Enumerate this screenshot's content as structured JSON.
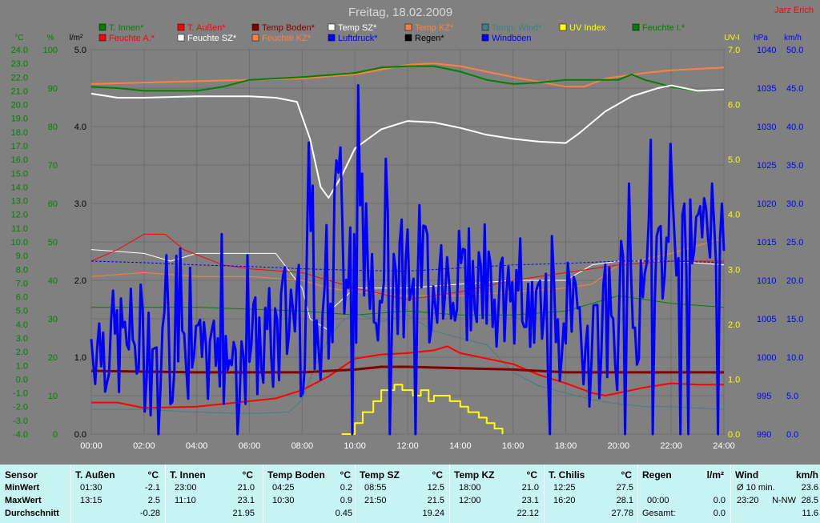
{
  "header": {
    "title": "Freitag, 18.02.2009",
    "author": "Jarz Erich"
  },
  "legend": [
    {
      "label": "T. Innen*",
      "color": "#008000"
    },
    {
      "label": "T. Außen*",
      "color": "#ff0000"
    },
    {
      "label": "Temp Boden*",
      "color": "#800000"
    },
    {
      "label": "Temp SZ*",
      "color": "#ffffff"
    },
    {
      "label": "Temp KZ*",
      "color": "#ff8040"
    },
    {
      "label": "Temp. Wind*",
      "color": "#408080"
    },
    {
      "label": "UV Index",
      "color": "#ffff00"
    },
    {
      "label": "Feuchte I.*",
      "color": "#008000"
    },
    {
      "label": "Feuchte A.*",
      "color": "#ff0000"
    },
    {
      "label": "Feuchte SZ*",
      "color": "#ffffff"
    },
    {
      "label": "Feuchte KZ*",
      "color": "#ff8040"
    },
    {
      "label": "Luftdruck*",
      "color": "#0000ff"
    },
    {
      "label": "Regen*",
      "color": "#000000"
    },
    {
      "label": "Windböen",
      "color": "#0000ff"
    }
  ],
  "chart_data": {
    "type": "line",
    "xlabel": "",
    "x_ticks": [
      "00:00",
      "02:00",
      "04:00",
      "06:00",
      "08:00",
      "10:00",
      "12:00",
      "14:00",
      "16:00",
      "18:00",
      "20:00",
      "22:00",
      "24:00"
    ],
    "xlim": [
      0,
      24
    ],
    "axes": {
      "temp": {
        "unit": "°C",
        "ylim": [
          -4,
          24
        ],
        "color": "#008000",
        "ticks": [
          "24.0",
          "23.0",
          "22.0",
          "21.0",
          "20.0",
          "19.0",
          "18.0",
          "17.0",
          "16.0",
          "15.0",
          "14.0",
          "13.0",
          "12.0",
          "11.0",
          "10.0",
          "9.0",
          "8.0",
          "7.0",
          "6.0",
          "5.0",
          "4.0",
          "3.0",
          "2.0",
          "1.0",
          "0.0",
          "-1.0",
          "-2.0",
          "-3.0",
          "-4.0"
        ]
      },
      "humidity": {
        "unit": "%",
        "ylim": [
          0,
          100
        ],
        "color": "#008000",
        "ticks": [
          "100",
          "90",
          "80",
          "70",
          "60",
          "50",
          "40",
          "30",
          "20",
          "10",
          "0"
        ]
      },
      "rain": {
        "unit": "l/m²",
        "ylim": [
          0,
          5
        ],
        "color": "#000000",
        "ticks": [
          "5.0",
          "4.0",
          "3.0",
          "2.0",
          "1.0",
          "0.0"
        ]
      },
      "uv": {
        "unit": "UV-I",
        "ylim": [
          0,
          7
        ],
        "color": "#ffff00",
        "ticks": [
          "7.0",
          "6.0",
          "5.0",
          "4.0",
          "3.0",
          "2.0",
          "1.0",
          "0.0"
        ]
      },
      "pressure": {
        "unit": "hPa",
        "ylim": [
          990,
          1040
        ],
        "color": "#0000ff",
        "ticks": [
          "1040",
          "1035",
          "1030",
          "1025",
          "1020",
          "1015",
          "1010",
          "1005",
          "1000",
          "995",
          "990"
        ]
      },
      "wind": {
        "unit": "km/h",
        "ylim": [
          0,
          50
        ],
        "color": "#0000ff",
        "ticks": [
          "50.0",
          "45.0",
          "40.0",
          "35.0",
          "30.0",
          "25.0",
          "20.0",
          "15.0",
          "10.0",
          "5.0",
          "0.0"
        ]
      }
    },
    "series": [
      {
        "name": "Temp KZ*",
        "axis": "temp",
        "color": "#ff8040",
        "width": 2,
        "x": [
          0,
          2,
          4,
          6,
          8,
          10,
          12,
          13,
          14,
          16,
          18,
          18.7,
          19.5,
          21,
          22,
          24
        ],
        "y": [
          21.5,
          21.6,
          21.7,
          21.8,
          21.9,
          22.2,
          22.9,
          23.0,
          22.8,
          22.0,
          21.3,
          21.3,
          21.9,
          22.3,
          22.5,
          22.7
        ]
      },
      {
        "name": "T. Innen*",
        "axis": "temp",
        "color": "#008000",
        "width": 2,
        "x": [
          0,
          1,
          2,
          4,
          5,
          6,
          8,
          10,
          11,
          12,
          13,
          14,
          15,
          16,
          17,
          18,
          19,
          20,
          20.5,
          21,
          22,
          23,
          24
        ],
        "y": [
          21.3,
          21.2,
          21.0,
          21.0,
          21.3,
          21.8,
          22.0,
          22.3,
          22.7,
          22.8,
          22.8,
          22.4,
          21.8,
          21.5,
          21.6,
          21.8,
          21.8,
          21.8,
          22.2,
          21.8,
          21.3,
          21.0,
          21.1
        ]
      },
      {
        "name": "Temp SZ*",
        "axis": "temp",
        "color": "#ffffff",
        "width": 2,
        "x": [
          0,
          1,
          2,
          4,
          6,
          7,
          7.8,
          8.3,
          8.7,
          9,
          9.5,
          10,
          11,
          12,
          13,
          14,
          15,
          16,
          17,
          18,
          18.5,
          19.5,
          20.5,
          21.5,
          22,
          23,
          24
        ],
        "y": [
          20.8,
          20.5,
          20.5,
          20.6,
          20.6,
          20.5,
          20.2,
          17.5,
          14.0,
          13.2,
          14.8,
          16.8,
          18.2,
          18.8,
          18.7,
          18.3,
          17.8,
          17.5,
          17.3,
          17.2,
          17.9,
          19.5,
          20.6,
          21.2,
          21.4,
          21.0,
          21.1
        ]
      },
      {
        "name": "Feuchte SZ*",
        "axis": "humidity",
        "color": "#ffffff",
        "width": 1,
        "x": [
          0,
          2,
          3,
          4,
          6,
          7,
          8,
          8.3,
          9,
          9.2,
          10,
          12,
          14,
          16,
          18,
          18.5,
          19,
          20,
          22,
          24
        ],
        "y": [
          48,
          47,
          45,
          47,
          47,
          47,
          38,
          30,
          27,
          33,
          38,
          38,
          39,
          40,
          40,
          42,
          44,
          45,
          45,
          44
        ]
      },
      {
        "name": "Feuchte KZ*",
        "axis": "humidity",
        "color": "#ff8040",
        "width": 1,
        "x": [
          0,
          2,
          4,
          6,
          8,
          9,
          10,
          12,
          14,
          16,
          18,
          19,
          20,
          22,
          24
        ],
        "y": [
          41,
          42,
          41,
          41,
          40,
          38,
          37,
          36,
          36,
          37,
          38,
          39,
          44,
          47,
          51
        ]
      },
      {
        "name": "Feuchte A.*",
        "axis": "humidity",
        "color": "#ff0000",
        "width": 1,
        "x": [
          0,
          1,
          2,
          2.8,
          3.5,
          5,
          6,
          8,
          10,
          12,
          14,
          16,
          18,
          19,
          20,
          22,
          23,
          24
        ],
        "y": [
          45,
          48,
          52,
          52,
          48,
          44,
          43,
          42,
          38,
          35,
          37,
          40,
          42,
          43,
          44,
          45,
          45,
          45
        ]
      },
      {
        "name": "Feuchte I.*",
        "axis": "humidity",
        "color": "#008000",
        "width": 1,
        "x": [
          0,
          4,
          8,
          10,
          12,
          14,
          16,
          18,
          20,
          21,
          22,
          24
        ],
        "y": [
          33,
          33,
          32,
          31,
          32,
          31,
          31,
          32,
          36,
          35,
          34,
          33
        ]
      },
      {
        "name": "Luftdruck*",
        "axis": "pressure",
        "color": "#0000ff",
        "width": 1,
        "dash": "3,2",
        "x": [
          0,
          2,
          4,
          6,
          8,
          10,
          12,
          14,
          16,
          18,
          20,
          22,
          24
        ],
        "y": [
          1012.5,
          1012.3,
          1012.0,
          1011.8,
          1011.5,
          1011.3,
          1011.2,
          1011.6,
          1012.0,
          1012.2,
          1012.5,
          1012.5,
          1012.3
        ]
      },
      {
        "name": "Temp. Wind*",
        "axis": "temp",
        "color": "#408080",
        "width": 1,
        "x": [
          0,
          2,
          4,
          6,
          7.5,
          8,
          8.5,
          9,
          9.5,
          10,
          11,
          12,
          13,
          14,
          15,
          16,
          17,
          18,
          19,
          20,
          21,
          22,
          24
        ],
        "y": [
          -2.2,
          -2.2,
          -2.4,
          -2.5,
          -2.4,
          -1.5,
          1.0,
          3.0,
          4.2,
          4.8,
          4.2,
          4.7,
          3.5,
          3.0,
          2.5,
          0.5,
          -0.5,
          -1.0,
          -1.5,
          -1.8,
          -2.0,
          -2.0,
          -2.2
        ]
      },
      {
        "name": "T. Außen*",
        "axis": "temp",
        "color": "#ff0000",
        "width": 2,
        "x": [
          0,
          1,
          2,
          4,
          6,
          7,
          8,
          9,
          10,
          11,
          12,
          13,
          13.5,
          14,
          15,
          16,
          17,
          18,
          19,
          19.5,
          20,
          21,
          22,
          23,
          24
        ],
        "y": [
          -1.7,
          -1.7,
          -2.1,
          -2.0,
          -1.6,
          -1.4,
          -0.8,
          0.2,
          1.5,
          1.8,
          1.9,
          2.1,
          2.4,
          1.9,
          1.5,
          1.1,
          0.3,
          -0.3,
          -1.0,
          -1.2,
          -1.0,
          -0.6,
          -0.3,
          -0.4,
          -0.4
        ]
      },
      {
        "name": "Temp Boden*",
        "axis": "temp",
        "color": "#800000",
        "width": 3,
        "x": [
          0,
          4,
          8,
          10,
          11,
          12,
          14,
          16,
          18,
          20,
          22,
          24
        ],
        "y": [
          0.6,
          0.5,
          0.5,
          0.7,
          0.9,
          0.9,
          0.8,
          0.7,
          0.5,
          0.5,
          0.5,
          0.5
        ]
      },
      {
        "name": "UV Index",
        "axis": "uv",
        "color": "#ffff00",
        "width": 2,
        "step": true,
        "x": [
          9.5,
          10,
          10.3,
          10.7,
          11,
          11.3,
          11.5,
          11.8,
          12.2,
          12.5,
          12.8,
          13,
          13.3,
          13.6,
          14,
          14.3,
          14.7,
          15,
          15.3,
          15.6
        ],
        "y": [
          0,
          0.2,
          0.4,
          0.6,
          0.8,
          0.8,
          0.9,
          0.8,
          0.7,
          0.8,
          0.6,
          0.7,
          0.7,
          0.6,
          0.5,
          0.4,
          0.3,
          0.2,
          0.1,
          0
        ]
      },
      {
        "name": "Windböen",
        "axis": "wind",
        "color": "#0000ff",
        "width": 3,
        "jagged": true,
        "seed": 7,
        "profile_x": [
          0,
          2,
          4,
          6,
          7,
          8,
          9,
          9.5,
          10,
          10.5,
          11,
          12,
          13,
          14,
          15,
          16,
          17,
          18,
          19,
          20,
          21,
          22,
          23,
          24
        ],
        "profile_lo": [
          5,
          2,
          3,
          3,
          3,
          5,
          7,
          10,
          10,
          12,
          12,
          12,
          10,
          12,
          12,
          10,
          8,
          5,
          3,
          5,
          10,
          18,
          20,
          22
        ],
        "profile_hi": [
          18,
          20,
          15,
          18,
          20,
          30,
          28,
          45,
          40,
          30,
          28,
          30,
          30,
          28,
          25,
          22,
          22,
          20,
          22,
          26,
          28,
          32,
          32,
          30
        ]
      }
    ]
  },
  "stats": {
    "row_labels": {
      "sensor": "Sensor",
      "min": "MinWert",
      "max": "MaxWert",
      "avg": "Durchschnitt"
    },
    "columns": [
      {
        "title": "T. Außen",
        "unit": "°C",
        "min_time": "01:30",
        "min_val": "-2.1",
        "max_time": "13:15",
        "max_val": "2.5",
        "avg": "-0.28"
      },
      {
        "title": "T. Innen",
        "unit": "°C",
        "min_time": "23:00",
        "min_val": "21.0",
        "max_time": "11:10",
        "max_val": "23.1",
        "avg": "21.95"
      },
      {
        "title": "Temp Boden",
        "unit": "°C",
        "min_time": "04:25",
        "min_val": "0.2",
        "max_time": "10:30",
        "max_val": "0.9",
        "avg": "0.45"
      },
      {
        "title": "Temp SZ",
        "unit": "°C",
        "min_time": "08:55",
        "min_val": "12.5",
        "max_time": "21:50",
        "max_val": "21.5",
        "avg": "19.24"
      },
      {
        "title": "Temp KZ",
        "unit": "°C",
        "min_time": "18:00",
        "min_val": "21.0",
        "max_time": "12:00",
        "max_val": "23.1",
        "avg": "22.12"
      },
      {
        "title": "T. Chilis",
        "unit": "°C",
        "min_time": "12:25",
        "min_val": "27.5",
        "max_time": "16:20",
        "max_val": "28.1",
        "avg": "27.78"
      }
    ],
    "rain": {
      "title": "Regen",
      "unit": "l/m²",
      "min_time": "00:00",
      "min_val": "0.0",
      "total_label": "Gesamt:",
      "total_val": "0.0"
    },
    "wind": {
      "title": "Wind",
      "unit": "km/h",
      "min_label": "Ø 10 min.",
      "min_val": "23.6",
      "max_time": "23:20",
      "max_dir": "N-NW",
      "max_val": "28.5",
      "avg": "11.6"
    }
  }
}
